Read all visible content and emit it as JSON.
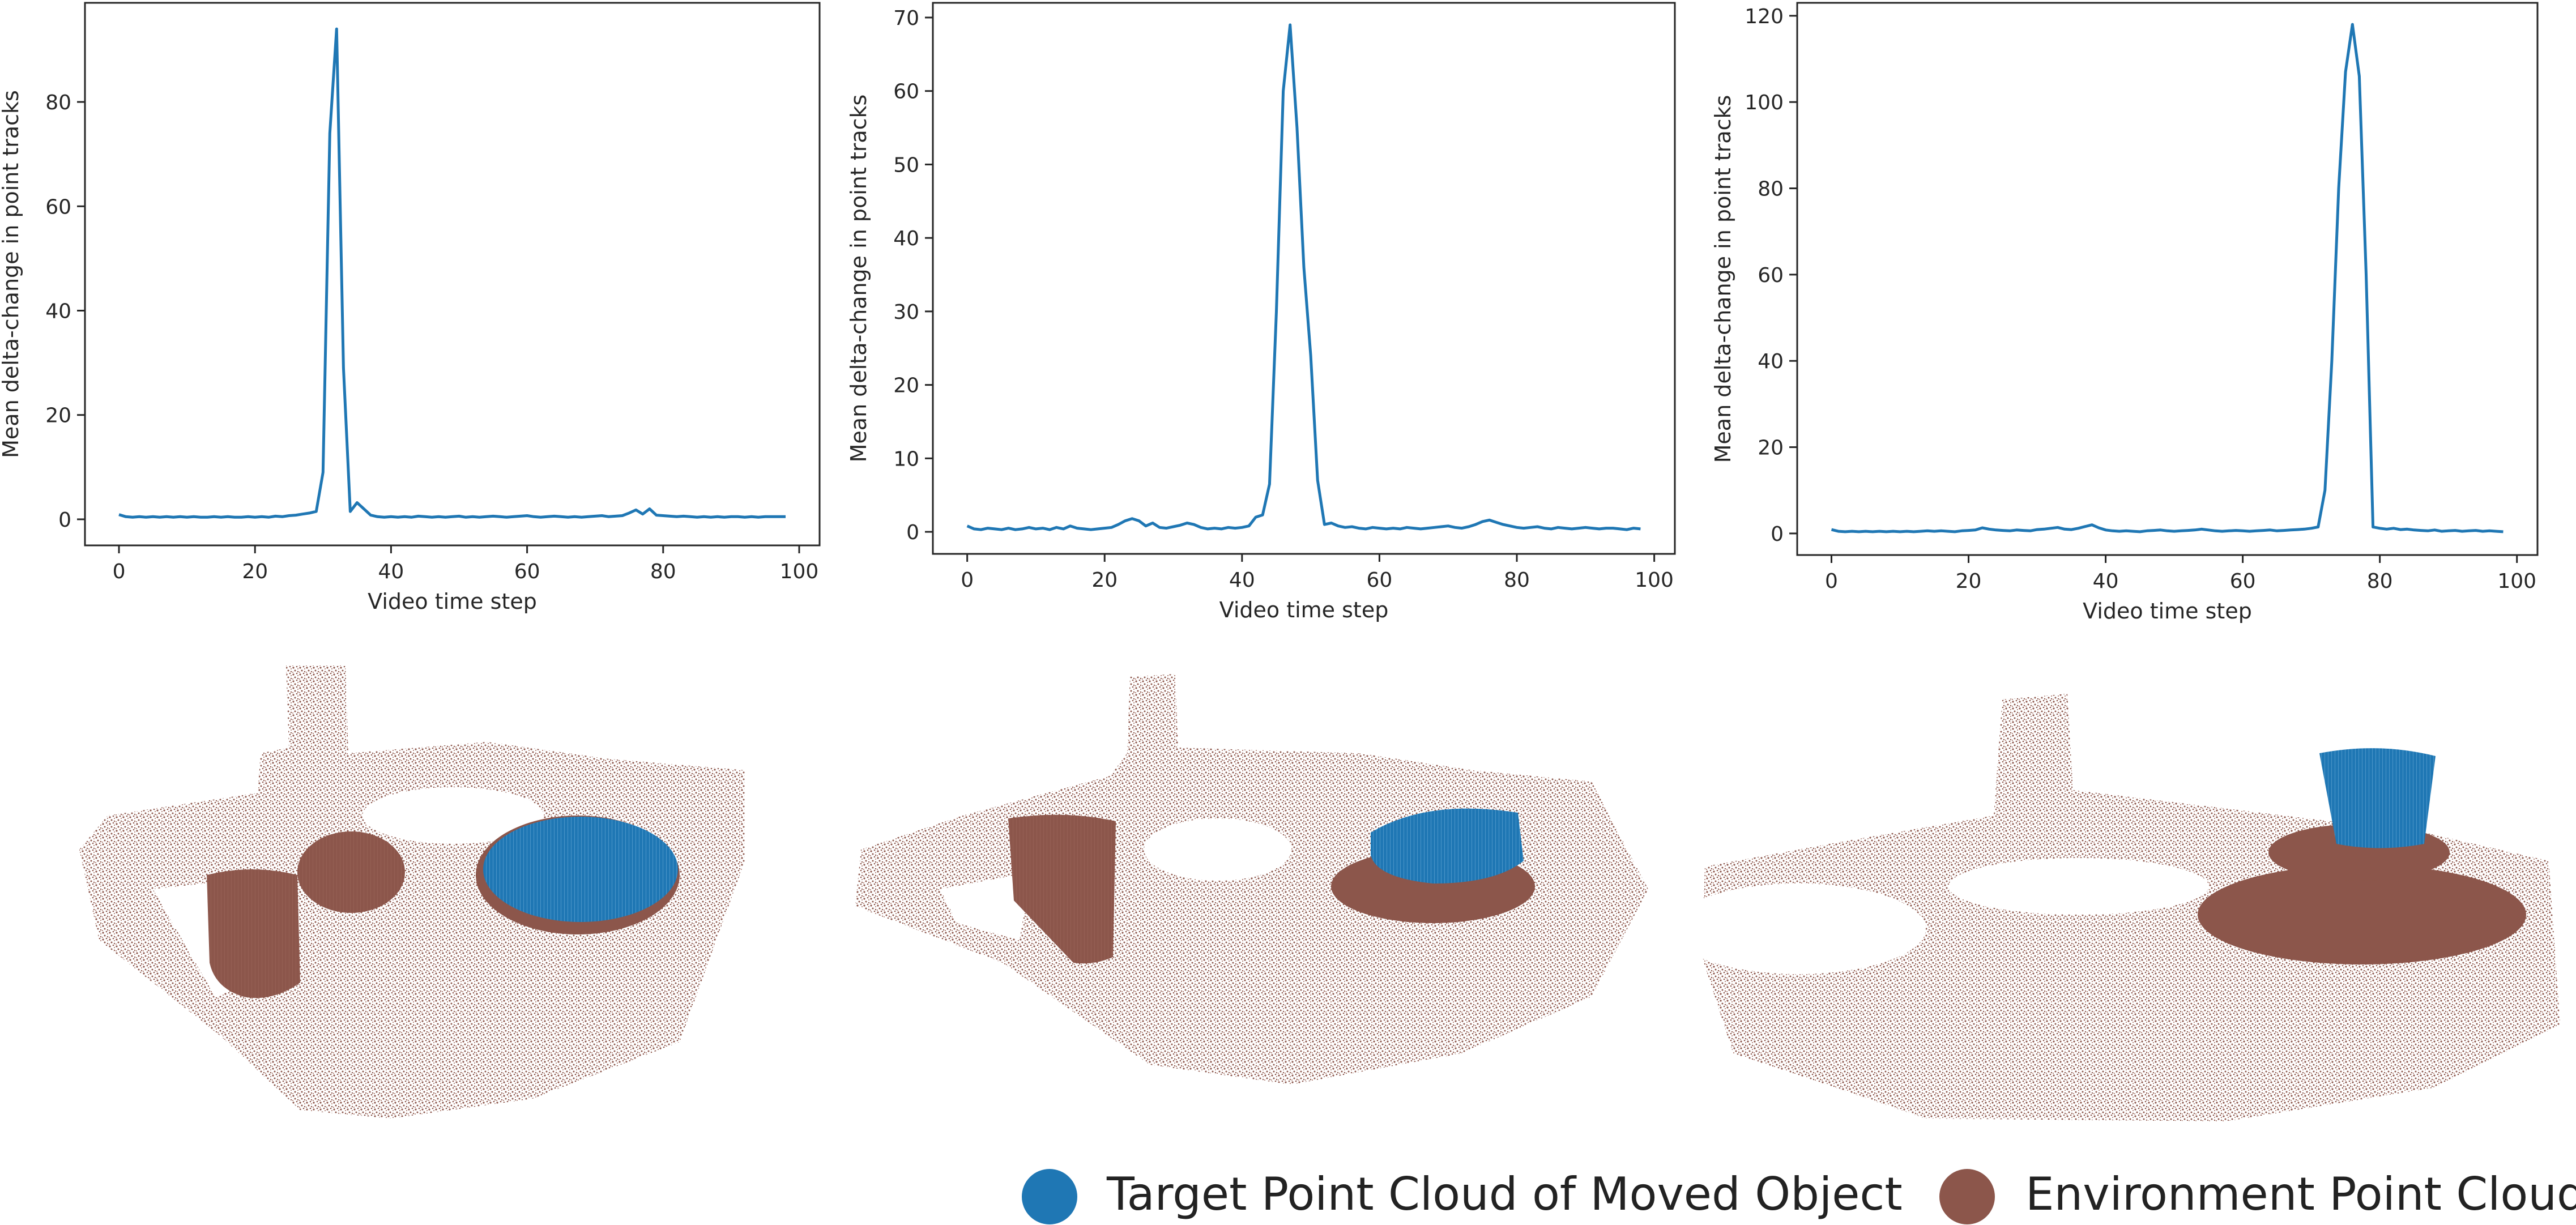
{
  "colors": {
    "line": "#1f77b4",
    "target": "#1f77b4",
    "environment": "#8c564b",
    "axis": "#262626",
    "text": "#262626"
  },
  "chart_data": [
    {
      "type": "line",
      "xlabel": "Video time step",
      "ylabel": "Mean delta-change in point tracks",
      "xlim": [
        -5,
        103
      ],
      "ylim": [
        -5,
        99
      ],
      "xticks": [
        0,
        20,
        40,
        60,
        80,
        100
      ],
      "yticks": [
        0,
        20,
        40,
        60,
        80
      ],
      "grid": false,
      "series": [
        {
          "x": [
            0,
            1,
            2,
            3,
            4,
            5,
            6,
            7,
            8,
            9,
            10,
            11,
            12,
            13,
            14,
            15,
            16,
            17,
            18,
            19,
            20,
            21,
            22,
            23,
            24,
            25,
            26,
            27,
            28,
            29,
            30,
            31,
            32,
            33,
            34,
            35,
            36,
            37,
            38,
            39,
            40,
            41,
            42,
            43,
            44,
            45,
            46,
            47,
            48,
            49,
            50,
            51,
            52,
            53,
            54,
            55,
            56,
            57,
            58,
            59,
            60,
            61,
            62,
            63,
            64,
            65,
            66,
            67,
            68,
            69,
            70,
            71,
            72,
            73,
            74,
            75,
            76,
            77,
            78,
            79,
            80,
            81,
            82,
            83,
            84,
            85,
            86,
            87,
            88,
            89,
            90,
            91,
            92,
            93,
            94,
            95,
            96,
            97,
            98
          ],
          "y": [
            0.9,
            0.5,
            0.4,
            0.5,
            0.4,
            0.5,
            0.4,
            0.5,
            0.4,
            0.5,
            0.4,
            0.5,
            0.4,
            0.4,
            0.5,
            0.4,
            0.5,
            0.4,
            0.4,
            0.5,
            0.4,
            0.5,
            0.4,
            0.6,
            0.5,
            0.7,
            0.8,
            1.0,
            1.2,
            1.5,
            9,
            74,
            94,
            29,
            1.5,
            3.2,
            2.0,
            0.8,
            0.5,
            0.4,
            0.5,
            0.4,
            0.5,
            0.4,
            0.6,
            0.5,
            0.4,
            0.5,
            0.4,
            0.5,
            0.6,
            0.4,
            0.5,
            0.4,
            0.5,
            0.6,
            0.5,
            0.4,
            0.5,
            0.6,
            0.7,
            0.5,
            0.4,
            0.5,
            0.6,
            0.5,
            0.4,
            0.5,
            0.4,
            0.5,
            0.6,
            0.7,
            0.5,
            0.6,
            0.7,
            1.2,
            1.8,
            1.0,
            2.0,
            0.8,
            0.7,
            0.6,
            0.5,
            0.6,
            0.5,
            0.4,
            0.5,
            0.4,
            0.5,
            0.4,
            0.5,
            0.5,
            0.4,
            0.5,
            0.4,
            0.5,
            0.5,
            0.5,
            0.5
          ]
        }
      ]
    },
    {
      "type": "line",
      "xlabel": "Video time step",
      "ylabel": "Mean delta-change in point tracks",
      "xlim": [
        -5,
        103
      ],
      "ylim": [
        -3,
        72
      ],
      "xticks": [
        0,
        20,
        40,
        60,
        80,
        100
      ],
      "yticks": [
        0,
        10,
        20,
        30,
        40,
        50,
        60,
        70
      ],
      "grid": false,
      "series": [
        {
          "x": [
            0,
            1,
            2,
            3,
            4,
            5,
            6,
            7,
            8,
            9,
            10,
            11,
            12,
            13,
            14,
            15,
            16,
            17,
            18,
            19,
            20,
            21,
            22,
            23,
            24,
            25,
            26,
            27,
            28,
            29,
            30,
            31,
            32,
            33,
            34,
            35,
            36,
            37,
            38,
            39,
            40,
            41,
            42,
            43,
            44,
            45,
            46,
            47,
            48,
            49,
            50,
            51,
            52,
            53,
            54,
            55,
            56,
            57,
            58,
            59,
            60,
            61,
            62,
            63,
            64,
            65,
            66,
            67,
            68,
            69,
            70,
            71,
            72,
            73,
            74,
            75,
            76,
            77,
            78,
            79,
            80,
            81,
            82,
            83,
            84,
            85,
            86,
            87,
            88,
            89,
            90,
            91,
            92,
            93,
            94,
            95,
            96,
            97,
            98
          ],
          "y": [
            0.8,
            0.4,
            0.3,
            0.5,
            0.4,
            0.3,
            0.5,
            0.3,
            0.4,
            0.6,
            0.4,
            0.5,
            0.3,
            0.6,
            0.4,
            0.8,
            0.5,
            0.4,
            0.3,
            0.4,
            0.5,
            0.6,
            1.0,
            1.5,
            1.8,
            1.5,
            0.8,
            1.2,
            0.6,
            0.5,
            0.7,
            0.9,
            1.2,
            1.0,
            0.6,
            0.4,
            0.5,
            0.4,
            0.6,
            0.5,
            0.6,
            0.8,
            2.0,
            2.3,
            6.5,
            30,
            60,
            69,
            55,
            36,
            24,
            7,
            1.0,
            1.2,
            0.8,
            0.6,
            0.7,
            0.5,
            0.4,
            0.6,
            0.5,
            0.4,
            0.5,
            0.4,
            0.6,
            0.5,
            0.4,
            0.5,
            0.6,
            0.7,
            0.8,
            0.6,
            0.5,
            0.7,
            1.0,
            1.4,
            1.6,
            1.3,
            1.0,
            0.8,
            0.6,
            0.5,
            0.6,
            0.7,
            0.5,
            0.4,
            0.6,
            0.5,
            0.4,
            0.5,
            0.6,
            0.5,
            0.4,
            0.5,
            0.5,
            0.4,
            0.3,
            0.5,
            0.4
          ]
        }
      ]
    },
    {
      "type": "line",
      "xlabel": "Video time step",
      "ylabel": "Mean delta-change in point tracks",
      "xlim": [
        -5,
        103
      ],
      "ylim": [
        -5,
        123
      ],
      "xticks": [
        0,
        20,
        40,
        60,
        80,
        100
      ],
      "yticks": [
        0,
        20,
        40,
        60,
        80,
        100,
        120
      ],
      "grid": false,
      "series": [
        {
          "x": [
            0,
            1,
            2,
            3,
            4,
            5,
            6,
            7,
            8,
            9,
            10,
            11,
            12,
            13,
            14,
            15,
            16,
            17,
            18,
            19,
            20,
            21,
            22,
            23,
            24,
            25,
            26,
            27,
            28,
            29,
            30,
            31,
            32,
            33,
            34,
            35,
            36,
            37,
            38,
            39,
            40,
            41,
            42,
            43,
            44,
            45,
            46,
            47,
            48,
            49,
            50,
            51,
            52,
            53,
            54,
            55,
            56,
            57,
            58,
            59,
            60,
            61,
            62,
            63,
            64,
            65,
            66,
            67,
            68,
            69,
            70,
            71,
            72,
            73,
            74,
            75,
            76,
            77,
            78,
            79,
            80,
            81,
            82,
            83,
            84,
            85,
            86,
            87,
            88,
            89,
            90,
            91,
            92,
            93,
            94,
            95,
            96,
            97,
            98
          ],
          "y": [
            0.9,
            0.5,
            0.4,
            0.5,
            0.4,
            0.5,
            0.4,
            0.5,
            0.4,
            0.5,
            0.4,
            0.5,
            0.4,
            0.5,
            0.6,
            0.5,
            0.6,
            0.5,
            0.4,
            0.6,
            0.7,
            0.8,
            1.3,
            1.0,
            0.8,
            0.7,
            0.6,
            0.8,
            0.7,
            0.6,
            0.9,
            1.0,
            1.2,
            1.4,
            1.0,
            0.9,
            1.2,
            1.6,
            2.0,
            1.3,
            0.8,
            0.6,
            0.5,
            0.6,
            0.5,
            0.4,
            0.6,
            0.7,
            0.8,
            0.6,
            0.5,
            0.6,
            0.7,
            0.8,
            1.0,
            0.8,
            0.6,
            0.5,
            0.6,
            0.7,
            0.6,
            0.5,
            0.6,
            0.7,
            0.8,
            0.6,
            0.7,
            0.8,
            0.9,
            1.0,
            1.2,
            1.5,
            10,
            40,
            80,
            107,
            118,
            106,
            60,
            1.5,
            1.2,
            1.0,
            1.2,
            0.9,
            1.0,
            0.8,
            0.7,
            0.6,
            0.8,
            0.5,
            0.6,
            0.7,
            0.5,
            0.6,
            0.7,
            0.5,
            0.6,
            0.5,
            0.4
          ]
        }
      ]
    }
  ],
  "legend": {
    "target_label": "Target Point Cloud of Moved Object",
    "environment_label": "Environment Point Cloud"
  }
}
